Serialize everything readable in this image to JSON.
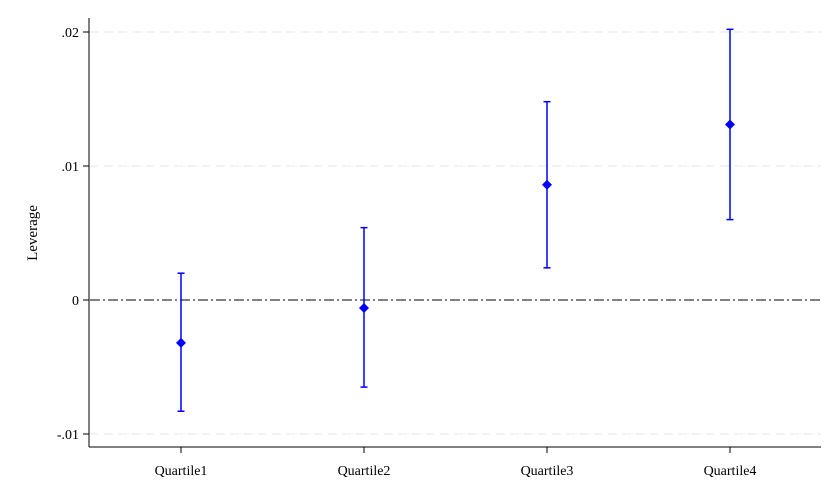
{
  "chart_data": {
    "type": "scatter",
    "title": "",
    "xlabel": "",
    "ylabel": "Leverage",
    "categories": [
      "Quartile1",
      "Quartile2",
      "Quartile3",
      "Quartile4"
    ],
    "series": [
      {
        "values": [
          -0.0032,
          -0.0006,
          0.0086,
          0.0131
        ],
        "ci_low": [
          -0.0083,
          -0.0065,
          0.0024,
          0.006
        ],
        "ci_high": [
          0.002,
          0.0054,
          0.0148,
          0.0202
        ]
      }
    ],
    "ylim": [
      -0.0105,
      0.0212
    ],
    "yticks": [
      -0.01,
      0,
      0.01,
      0.02
    ],
    "ytick_labels": [
      "-.01",
      "0",
      ".01",
      ".02"
    ],
    "reference_line": 0,
    "grid": true,
    "marker_color": "#0000ff",
    "line_color": "#000000",
    "grid_color": "#e6e6e6"
  }
}
